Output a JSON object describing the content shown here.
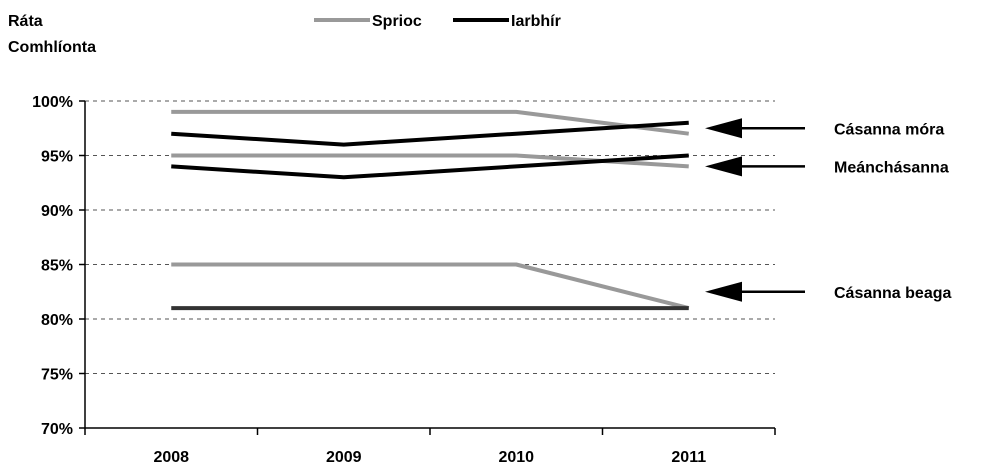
{
  "chart_data": {
    "type": "line",
    "title": "",
    "ylabel_lines": [
      "Ráta",
      "Comhlíonta"
    ],
    "xlabel": "",
    "categories": [
      "2008",
      "2009",
      "2010",
      "2011"
    ],
    "ylim": [
      70,
      100
    ],
    "y_ticks": [
      {
        "value": 100,
        "label": "100%"
      },
      {
        "value": 95,
        "label": "95%"
      },
      {
        "value": 90,
        "label": "90%"
      },
      {
        "value": 85,
        "label": "85%"
      },
      {
        "value": 80,
        "label": "80%"
      },
      {
        "value": 75,
        "label": "75%"
      },
      {
        "value": 70,
        "label": "70%"
      }
    ],
    "grid": "horizontal-dashed",
    "legend": {
      "placement": "top",
      "entries": [
        {
          "name": "Sprioc",
          "color": "#999999"
        },
        {
          "name": "Iarbhír",
          "color": "#000000"
        }
      ]
    },
    "series": [
      {
        "group": "Cásanna móra",
        "kind": "Sprioc",
        "values": [
          99,
          99,
          99,
          97
        ],
        "color": "#999999"
      },
      {
        "group": "Cásanna móra",
        "kind": "Iarbhír",
        "values": [
          97,
          96,
          97,
          98
        ],
        "color": "#000000"
      },
      {
        "group": "Meánchásanna",
        "kind": "Sprioc",
        "values": [
          95,
          95,
          95,
          94
        ],
        "color": "#999999"
      },
      {
        "group": "Meánchásanna",
        "kind": "Iarbhír",
        "values": [
          94,
          93,
          94,
          95
        ],
        "color": "#000000"
      },
      {
        "group": "Cásanna beaga",
        "kind": "Sprioc",
        "values": [
          85,
          85,
          85,
          81
        ],
        "color": "#999999"
      },
      {
        "group": "Cásanna beaga",
        "kind": "Iarbhír",
        "values": [
          81,
          81,
          81,
          81
        ],
        "color": "#333333"
      }
    ],
    "annotations": [
      {
        "label": "Cásanna móra",
        "value": 97.5
      },
      {
        "label": "Meánchásanna",
        "value": 94
      },
      {
        "label": "Cásanna beaga",
        "value": 82.5
      }
    ]
  }
}
